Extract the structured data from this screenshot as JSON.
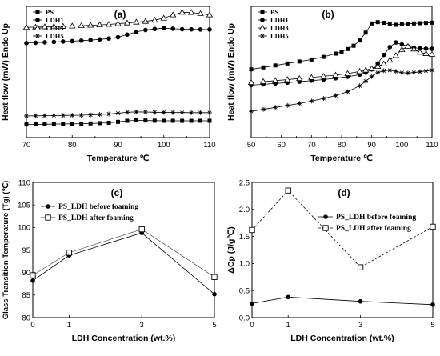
{
  "chart_data": [
    {
      "panel": "(a)",
      "type": "line",
      "xlabel": "Temperature ℃",
      "ylabel": "Heat flow (mW) Endo Up",
      "xlim": [
        70,
        110
      ],
      "xticks": [
        "70",
        "80",
        "90",
        "100",
        "110"
      ],
      "xtick_values": [
        70,
        80,
        90,
        100,
        110
      ],
      "yticks": [],
      "ylim": [
        0,
        100
      ],
      "legend": "top-left",
      "series": [
        {
          "name": "PS",
          "marker": "square",
          "x": [
            70,
            72,
            74,
            76,
            78,
            80,
            82,
            84,
            86,
            88,
            90,
            92,
            94,
            96,
            98,
            100,
            102,
            104,
            106,
            108,
            110
          ],
          "y": [
            10,
            10.1,
            10.2,
            10.3,
            10.4,
            10.5,
            10.6,
            10.8,
            11,
            11.3,
            12,
            12.8,
            13.1,
            13,
            12.9,
            12.8,
            12.8,
            12.8,
            12.8,
            12.8,
            12.8
          ]
        },
        {
          "name": "LDH1",
          "marker": "circle",
          "x": [
            70,
            72,
            74,
            76,
            78,
            80,
            82,
            84,
            86,
            88,
            90,
            92,
            94,
            96,
            98,
            100,
            102,
            104,
            106,
            108,
            110
          ],
          "y": [
            72,
            72.3,
            72.6,
            72.9,
            73.2,
            73.5,
            73.9,
            74.3,
            74.8,
            75.5,
            76.5,
            78.5,
            80.5,
            82,
            82.8,
            83.4,
            83,
            82.6,
            82.5,
            82.4,
            82.4
          ]
        },
        {
          "name": "LDH3",
          "marker": "triangle",
          "x": [
            70,
            72,
            74,
            76,
            78,
            80,
            82,
            84,
            86,
            88,
            90,
            92,
            94,
            96,
            98,
            100,
            102,
            104,
            106,
            108,
            110
          ],
          "y": [
            84,
            84.2,
            84.4,
            84.6,
            84.8,
            85,
            85.3,
            85.6,
            85.9,
            86.3,
            86.8,
            87.4,
            88,
            88.6,
            89.5,
            91,
            93.5,
            95.5,
            95.4,
            94.5,
            93.5
          ]
        },
        {
          "name": "LDH5",
          "marker": "star",
          "x": [
            70,
            72,
            74,
            76,
            78,
            80,
            82,
            84,
            86,
            88,
            90,
            92,
            94,
            96,
            98,
            100,
            102,
            104,
            106,
            108,
            110
          ],
          "y": [
            16.5,
            16.6,
            16.7,
            16.8,
            16.9,
            17,
            17.1,
            17.3,
            17.6,
            18,
            18.6,
            19.3,
            19.6,
            19.5,
            19.3,
            19.2,
            19.1,
            19.1,
            19,
            19,
            19
          ]
        }
      ]
    },
    {
      "panel": "(b)",
      "type": "line",
      "xlabel": "Temperature ℃",
      "ylabel": "Heat flow (mW) Endo Up",
      "xlim": [
        50,
        110
      ],
      "xticks": [
        "50",
        "60",
        "70",
        "80",
        "90",
        "100",
        "110"
      ],
      "xtick_values": [
        50,
        60,
        70,
        80,
        90,
        100,
        110
      ],
      "yticks": [],
      "ylim": [
        0,
        100
      ],
      "legend": "top-left",
      "series": [
        {
          "name": "PS",
          "marker": "square",
          "x": [
            50,
            54,
            58,
            62,
            66,
            70,
            74,
            78,
            80,
            82,
            84,
            86,
            88,
            90,
            92,
            94,
            96,
            98,
            100,
            102,
            104,
            106,
            108,
            110
          ],
          "y": [
            52,
            53.5,
            55,
            56.5,
            58,
            59.5,
            61.5,
            64,
            65.5,
            67.5,
            70,
            74,
            80,
            87,
            88,
            87.5,
            86.5,
            86,
            86.4,
            86.7,
            87,
            87.2,
            87.4,
            87.6
          ]
        },
        {
          "name": "LDH1",
          "marker": "circle",
          "x": [
            50,
            54,
            58,
            62,
            66,
            70,
            74,
            78,
            82,
            86,
            88,
            90,
            92,
            94,
            96,
            98,
            100,
            102,
            104,
            106,
            108,
            110
          ],
          "y": [
            40,
            40.6,
            41.2,
            41.9,
            42.6,
            43.4,
            44.2,
            45.2,
            46.4,
            48,
            49.5,
            52,
            56.5,
            63,
            69,
            72.5,
            71,
            69.5,
            68.5,
            68,
            67.8,
            67.7
          ]
        },
        {
          "name": "LDH3",
          "marker": "triangle",
          "x": [
            50,
            54,
            58,
            62,
            66,
            70,
            74,
            78,
            82,
            86,
            88,
            90,
            92,
            94,
            96,
            98,
            100,
            102,
            104,
            106,
            108,
            110
          ],
          "y": [
            42,
            42.7,
            43.4,
            44.2,
            45,
            45.8,
            46.7,
            47.6,
            48.8,
            50.4,
            51.4,
            52.6,
            54.2,
            56.2,
            59,
            62.5,
            67,
            69.5,
            67.5,
            65,
            64,
            63.5
          ]
        },
        {
          "name": "LDH5",
          "marker": "star",
          "x": [
            50,
            54,
            58,
            62,
            66,
            70,
            74,
            78,
            82,
            86,
            88,
            90,
            92,
            94,
            96,
            98,
            100,
            102,
            104,
            106,
            108,
            110
          ],
          "y": [
            20,
            21.5,
            23,
            24.5,
            26,
            27.8,
            29.8,
            32,
            35,
            39.5,
            43,
            46.5,
            49.5,
            51,
            51.3,
            50.5,
            49.5,
            49.2,
            49.6,
            50.2,
            50.8,
            51.3
          ]
        }
      ]
    },
    {
      "panel": "(c)",
      "type": "line",
      "xlabel": "LDH Concentration (wt.%)",
      "ylabel": "Glass Transition Temperature (Tg) (℃)",
      "xlim": [
        0,
        5
      ],
      "ylim": [
        80,
        110
      ],
      "xticks": [
        "0",
        "1",
        "3",
        "5"
      ],
      "xtick_values": [
        0,
        1,
        3,
        5
      ],
      "yticks": [
        "80",
        "85",
        "90",
        "95",
        "100",
        "105",
        "110"
      ],
      "ytick_values": [
        80,
        85,
        90,
        95,
        100,
        105,
        110
      ],
      "legend": "top-left",
      "series": [
        {
          "name": "PS_LDH before foaming",
          "marker": "circle",
          "x": [
            0,
            1,
            3,
            5
          ],
          "y": [
            88.2,
            93.8,
            98.8,
            85.2
          ]
        },
        {
          "name": "PS_LDH after foaming",
          "marker": "square-open",
          "x": [
            0,
            1,
            3,
            5
          ],
          "y": [
            89.4,
            94.4,
            99.6,
            89.0
          ]
        }
      ]
    },
    {
      "panel": "(d)",
      "type": "line",
      "xlabel": "LDH Concentration (wt.%)",
      "ylabel": "ΔCp (J/g℃)",
      "xlim": [
        0,
        5
      ],
      "ylim": [
        0,
        2.5
      ],
      "xticks": [
        "0",
        "1",
        "3",
        "5"
      ],
      "xtick_values": [
        0,
        1,
        3,
        5
      ],
      "yticks": [
        "0.0",
        "0.5",
        "1.0",
        "1.5",
        "2.0",
        "2.5"
      ],
      "ytick_values": [
        0,
        0.5,
        1,
        1.5,
        2,
        2.5
      ],
      "legend": "top-right",
      "series": [
        {
          "name": "PS_LDH before foaming",
          "marker": "circle",
          "style": "solid",
          "x": [
            0,
            1,
            3,
            5
          ],
          "y": [
            0.26,
            0.38,
            0.3,
            0.24
          ]
        },
        {
          "name": "PS_LDH after foaming",
          "marker": "square-open",
          "style": "dashed",
          "x": [
            0,
            1,
            3,
            5
          ],
          "y": [
            1.62,
            2.35,
            0.93,
            1.68
          ]
        }
      ]
    }
  ]
}
